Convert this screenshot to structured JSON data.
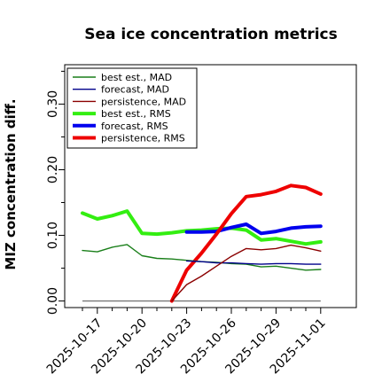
{
  "chart_data": {
    "type": "line",
    "title": "Sea ice concentration metrics",
    "xlabel": "",
    "ylabel": "MIZ concentration diff.",
    "x": [
      "2025-10-16",
      "2025-10-17",
      "2025-10-18",
      "2025-10-19",
      "2025-10-20",
      "2025-10-21",
      "2025-10-22",
      "2025-10-23",
      "2025-10-24",
      "2025-10-25",
      "2025-10-26",
      "2025-10-27",
      "2025-10-28",
      "2025-10-29",
      "2025-10-30",
      "2025-10-31",
      "2025-11-01"
    ],
    "x_ticks": [
      "2025-10-17",
      "2025-10-20",
      "2025-10-23",
      "2025-10-26",
      "2025-10-29",
      "2025-11-01"
    ],
    "highlight_tick": "2025-10-23",
    "highlight_color": "#2e8b2e",
    "ylim": [
      -0.01,
      0.36
    ],
    "y_ticks": [
      "0.00",
      "0.10",
      "0.20",
      "0.30"
    ],
    "baseline_value": 0.0,
    "legend_position": "top-left",
    "series": [
      {
        "name": "best est., MAD",
        "color": "#1a7f1a",
        "width": 1.4,
        "values": [
          0.077,
          0.075,
          0.082,
          0.086,
          0.069,
          0.065,
          0.064,
          0.062,
          0.06,
          0.059,
          0.057,
          0.056,
          0.052,
          0.053,
          0.05,
          0.047,
          0.048
        ]
      },
      {
        "name": "forecast,  MAD",
        "color": "#00008b",
        "width": 1.4,
        "values": [
          null,
          null,
          null,
          null,
          null,
          null,
          null,
          0.061,
          0.06,
          0.058,
          0.058,
          0.057,
          0.056,
          0.057,
          0.057,
          0.056,
          0.056
        ]
      },
      {
        "name": "persistence, MAD",
        "color": "#8b0000",
        "width": 1.4,
        "values": [
          null,
          null,
          null,
          null,
          null,
          null,
          0.0,
          0.025,
          0.038,
          0.053,
          0.068,
          0.08,
          0.078,
          0.08,
          0.085,
          0.081,
          0.076
        ]
      },
      {
        "name": "best est., RMS",
        "color": "#33ee11",
        "width": 4,
        "values": [
          0.134,
          0.125,
          0.13,
          0.137,
          0.103,
          0.102,
          0.104,
          0.107,
          0.108,
          0.11,
          0.111,
          0.108,
          0.093,
          0.095,
          0.091,
          0.087,
          0.09
        ]
      },
      {
        "name": "forecast,  RMS",
        "color": "#0000ee",
        "width": 4,
        "values": [
          null,
          null,
          null,
          null,
          null,
          null,
          null,
          0.105,
          0.105,
          0.106,
          0.112,
          0.117,
          0.103,
          0.106,
          0.111,
          0.113,
          0.114
        ]
      },
      {
        "name": "persistence, RMS",
        "color": "#ee0000",
        "width": 4,
        "values": [
          null,
          null,
          null,
          null,
          null,
          null,
          0.0,
          0.047,
          0.073,
          0.102,
          0.133,
          0.159,
          0.162,
          0.167,
          0.176,
          0.173,
          0.163
        ]
      }
    ]
  }
}
